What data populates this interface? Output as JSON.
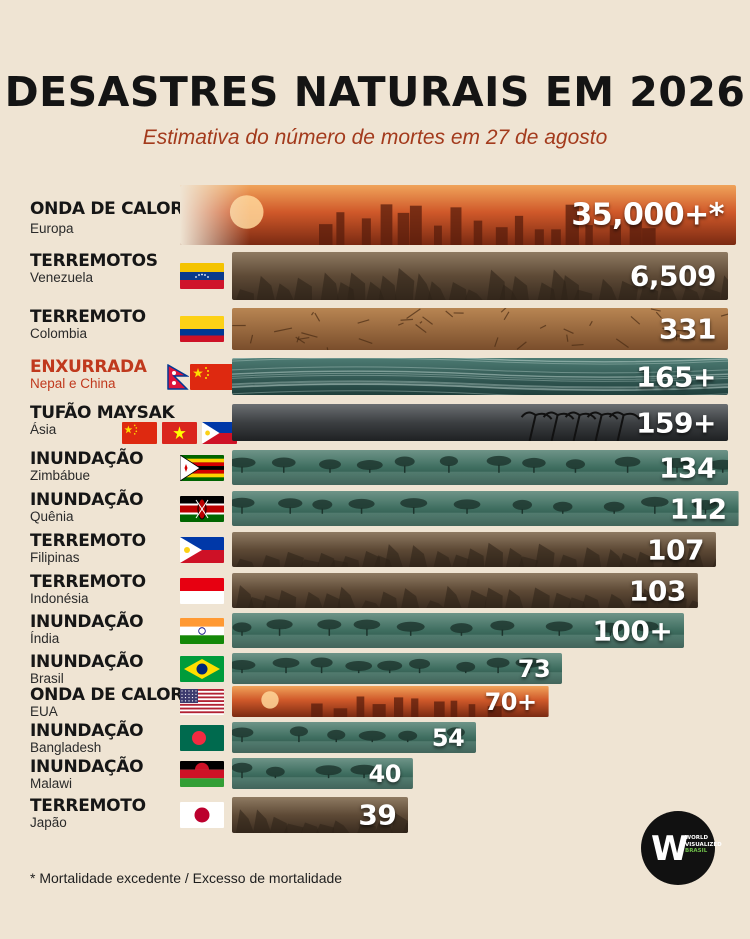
{
  "title": "DESASTRES NATURAIS EM 2026",
  "subtitle": "Estimativa do número de mortes em 27 de agosto",
  "footnote": "* Mortalidade excedente / Excesso de mortalidade",
  "logo": {
    "mark": "W",
    "line1": "WORLD",
    "line2": "VISUALIZED",
    "line3": "BRASIL"
  },
  "chart_data": {
    "type": "bar",
    "orientation": "horizontal",
    "title": "DESASTRES NATURAIS EM 2026",
    "subtitle": "Estimativa do número de mortes em 27 de agosto",
    "rows": [
      {
        "type": "ONDA DE CALOR",
        "place": "Europa",
        "value": 35000,
        "label": "35,000+*",
        "theme": "heat",
        "flags": [],
        "highlight": false
      },
      {
        "type": "TERREMOTOS",
        "place": "Venezuela",
        "value": 6509,
        "label": "6,509",
        "theme": "quake",
        "flags": [
          "venezuela"
        ],
        "highlight": false
      },
      {
        "type": "TERREMOTO",
        "place": "Colombia",
        "value": 331,
        "label": "331",
        "theme": "dry",
        "flags": [
          "colombia"
        ],
        "highlight": false
      },
      {
        "type": "ENXURRADA",
        "place": "Nepal e China",
        "value": 165,
        "label": "165+",
        "theme": "torrent",
        "flags": [
          "nepal",
          "china"
        ],
        "highlight": true
      },
      {
        "type": "TUFÃO MAYSAK",
        "place": "Ásia",
        "value": 159,
        "label": "159+",
        "theme": "storm",
        "flags": [
          "china",
          "vietnam",
          "philippines"
        ],
        "highlight": false
      },
      {
        "type": "INUNDAÇÃO",
        "place": "Zimbábue",
        "value": 134,
        "label": "134",
        "theme": "flood",
        "flags": [
          "zimbabwe"
        ],
        "highlight": false
      },
      {
        "type": "INUNDAÇÃO",
        "place": "Quênia",
        "value": 112,
        "label": "112",
        "theme": "flood",
        "flags": [
          "kenya"
        ],
        "highlight": false
      },
      {
        "type": "TERREMOTO",
        "place": "Filipinas",
        "value": 107,
        "label": "107",
        "theme": "quake",
        "flags": [
          "philippines"
        ],
        "highlight": false
      },
      {
        "type": "TERREMOTO",
        "place": "Indonésia",
        "value": 103,
        "label": "103",
        "theme": "quake",
        "flags": [
          "indonesia"
        ],
        "highlight": false
      },
      {
        "type": "INUNDAÇÃO",
        "place": "Índia",
        "value": 100,
        "label": "100+",
        "theme": "flood",
        "flags": [
          "india"
        ],
        "highlight": false
      },
      {
        "type": "INUNDAÇÃO",
        "place": "Brasil",
        "value": 73,
        "label": "73",
        "theme": "flood",
        "flags": [
          "brazil"
        ],
        "highlight": false
      },
      {
        "type": "ONDA DE CALOR",
        "place": "EUA",
        "value": 70,
        "label": "70+",
        "theme": "heat",
        "flags": [
          "usa"
        ],
        "highlight": false
      },
      {
        "type": "INUNDAÇÃO",
        "place": "Bangladesh",
        "value": 54,
        "label": "54",
        "theme": "flood",
        "flags": [
          "bangladesh"
        ],
        "highlight": false
      },
      {
        "type": "INUNDAÇÃO",
        "place": "Malawi",
        "value": 40,
        "label": "40",
        "theme": "flood",
        "flags": [
          "malawi"
        ],
        "highlight": false
      },
      {
        "type": "TERREMOTO",
        "place": "Japão",
        "value": 39,
        "label": "39",
        "theme": "quake",
        "flags": [
          "japan"
        ],
        "highlight": false
      }
    ],
    "scale": "broken (bars truncated at top values)",
    "colors": {
      "heat": "#c8501e",
      "quake": "#6e5a44",
      "dry": "#9a6a3e",
      "torrent": "#2f5a56",
      "storm": "#3a3d40",
      "flood": "#3d6b5c",
      "highlight_text": "#c0391d",
      "background": "#efe4d3"
    }
  }
}
